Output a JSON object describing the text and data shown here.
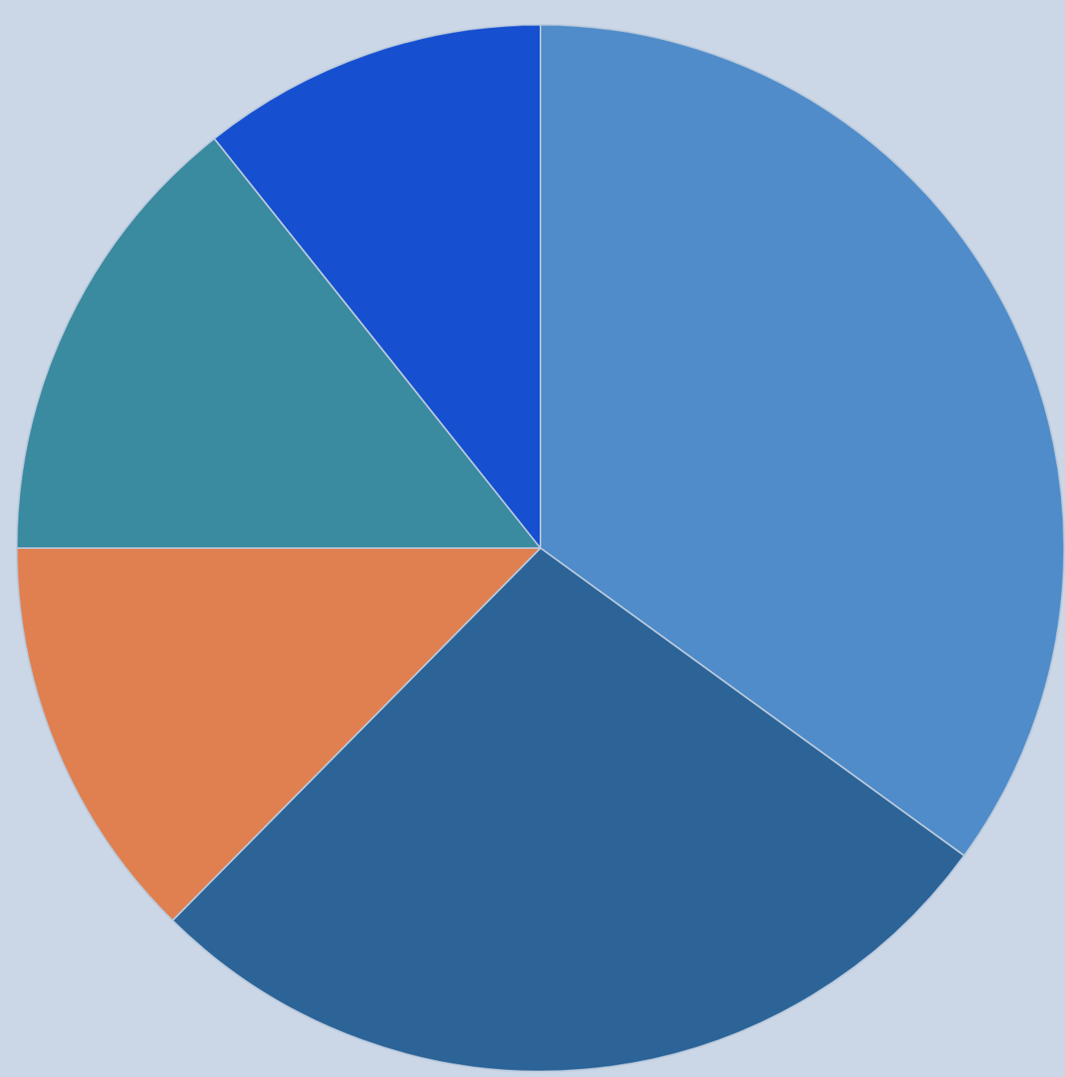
{
  "chart_data": {
    "type": "pie",
    "categories": [
      null,
      null,
      null,
      null,
      null
    ],
    "values": [
      35,
      27.4,
      12.6,
      14.3,
      10.7
    ],
    "colors": [
      "#4f8cc9",
      "#2c6498",
      "#e08050",
      "#3a8aa0",
      "#1650d0"
    ],
    "legend": false
  }
}
